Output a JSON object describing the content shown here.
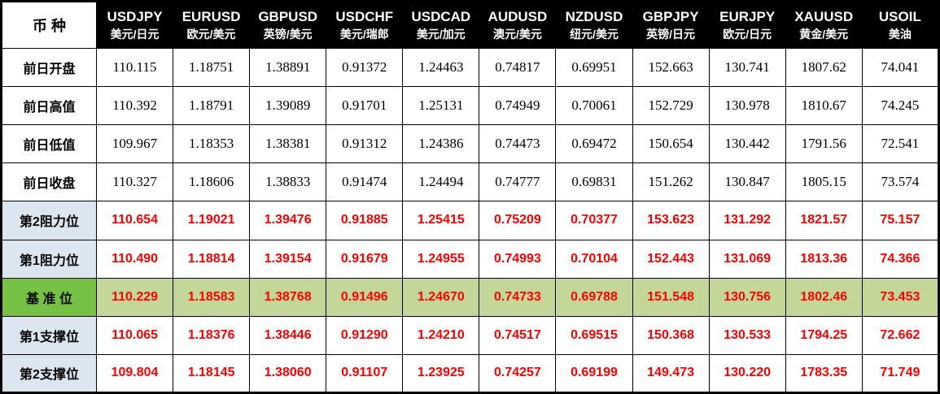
{
  "table": {
    "corner_label": "币 种",
    "colors": {
      "header_bg": "#000000",
      "header_text": "#ffffff",
      "pivot_label_bg": "#dce6f1",
      "base_label_bg": "#76c143",
      "base_row_bg": "#c4d79b",
      "pivot_value_text": "#ff0000",
      "border": "#000000"
    },
    "columns": [
      {
        "symbol": "USDJPY",
        "name": "美元/日元"
      },
      {
        "symbol": "EURUSD",
        "name": "欧元/美元"
      },
      {
        "symbol": "GBPUSD",
        "name": "英镑/美元"
      },
      {
        "symbol": "USDCHF",
        "name": "美元/瑞郎"
      },
      {
        "symbol": "USDCAD",
        "name": "美元/加元"
      },
      {
        "symbol": "AUDUSD",
        "name": "澳元/美元"
      },
      {
        "symbol": "NZDUSD",
        "name": "纽元/美元"
      },
      {
        "symbol": "GBPJPY",
        "name": "英镑/日元"
      },
      {
        "symbol": "EURJPY",
        "name": "欧元/日元"
      },
      {
        "symbol": "XAUUSD",
        "name": "黄金/美元"
      },
      {
        "symbol": "USOIL",
        "name": "美油"
      }
    ],
    "rows": [
      {
        "label": "前日开盘",
        "type": "plain",
        "values": [
          "110.115",
          "1.18751",
          "1.38891",
          "0.91372",
          "1.24463",
          "0.74817",
          "0.69951",
          "152.663",
          "130.741",
          "1807.62",
          "74.041"
        ]
      },
      {
        "label": "前日高值",
        "type": "plain",
        "values": [
          "110.392",
          "1.18791",
          "1.39089",
          "0.91701",
          "1.25131",
          "0.74949",
          "0.70061",
          "152.729",
          "130.978",
          "1810.67",
          "74.245"
        ]
      },
      {
        "label": "前日低值",
        "type": "plain",
        "values": [
          "109.967",
          "1.18353",
          "1.38381",
          "0.91312",
          "1.24386",
          "0.74473",
          "0.69472",
          "150.654",
          "130.442",
          "1791.56",
          "72.541"
        ]
      },
      {
        "label": "前日收盘",
        "type": "plain",
        "values": [
          "110.327",
          "1.18606",
          "1.38833",
          "0.91474",
          "1.24494",
          "0.74777",
          "0.69831",
          "151.262",
          "130.847",
          "1805.15",
          "73.574"
        ]
      },
      {
        "label": "第2阻力位",
        "type": "pivot",
        "values": [
          "110.654",
          "1.19021",
          "1.39476",
          "0.91885",
          "1.25415",
          "0.75209",
          "0.70377",
          "153.623",
          "131.292",
          "1821.57",
          "75.157"
        ]
      },
      {
        "label": "第1阻力位",
        "type": "pivot",
        "values": [
          "110.490",
          "1.18814",
          "1.39154",
          "0.91679",
          "1.24955",
          "0.74993",
          "0.70104",
          "152.443",
          "131.069",
          "1813.36",
          "74.366"
        ]
      },
      {
        "label": "基 准 位",
        "type": "base",
        "values": [
          "110.229",
          "1.18583",
          "1.38768",
          "0.91496",
          "1.24670",
          "0.74733",
          "0.69788",
          "151.548",
          "130.756",
          "1802.46",
          "73.453"
        ]
      },
      {
        "label": "第1支撑位",
        "type": "pivot",
        "values": [
          "110.065",
          "1.18376",
          "1.38446",
          "0.91290",
          "1.24210",
          "0.74517",
          "0.69515",
          "150.368",
          "130.533",
          "1794.25",
          "72.662"
        ]
      },
      {
        "label": "第2支撑位",
        "type": "pivot",
        "values": [
          "109.804",
          "1.18145",
          "1.38060",
          "0.91107",
          "1.23925",
          "0.74257",
          "0.69199",
          "149.473",
          "130.220",
          "1783.35",
          "71.749"
        ]
      }
    ]
  }
}
